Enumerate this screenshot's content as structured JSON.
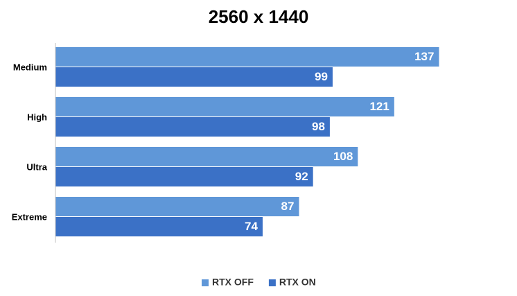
{
  "chart_data": {
    "type": "hbar",
    "title": "2560 x 1440",
    "categories": [
      "Medium",
      "High",
      "Ultra",
      "Extreme"
    ],
    "series": [
      {
        "name": "RTX OFF",
        "color": "#5f97d8",
        "values": [
          137,
          121,
          108,
          87
        ]
      },
      {
        "name": "RTX ON",
        "color": "#3b71c6",
        "values": [
          99,
          98,
          92,
          74
        ]
      }
    ],
    "xlim": [
      0,
      150
    ],
    "legend": "bottom"
  }
}
